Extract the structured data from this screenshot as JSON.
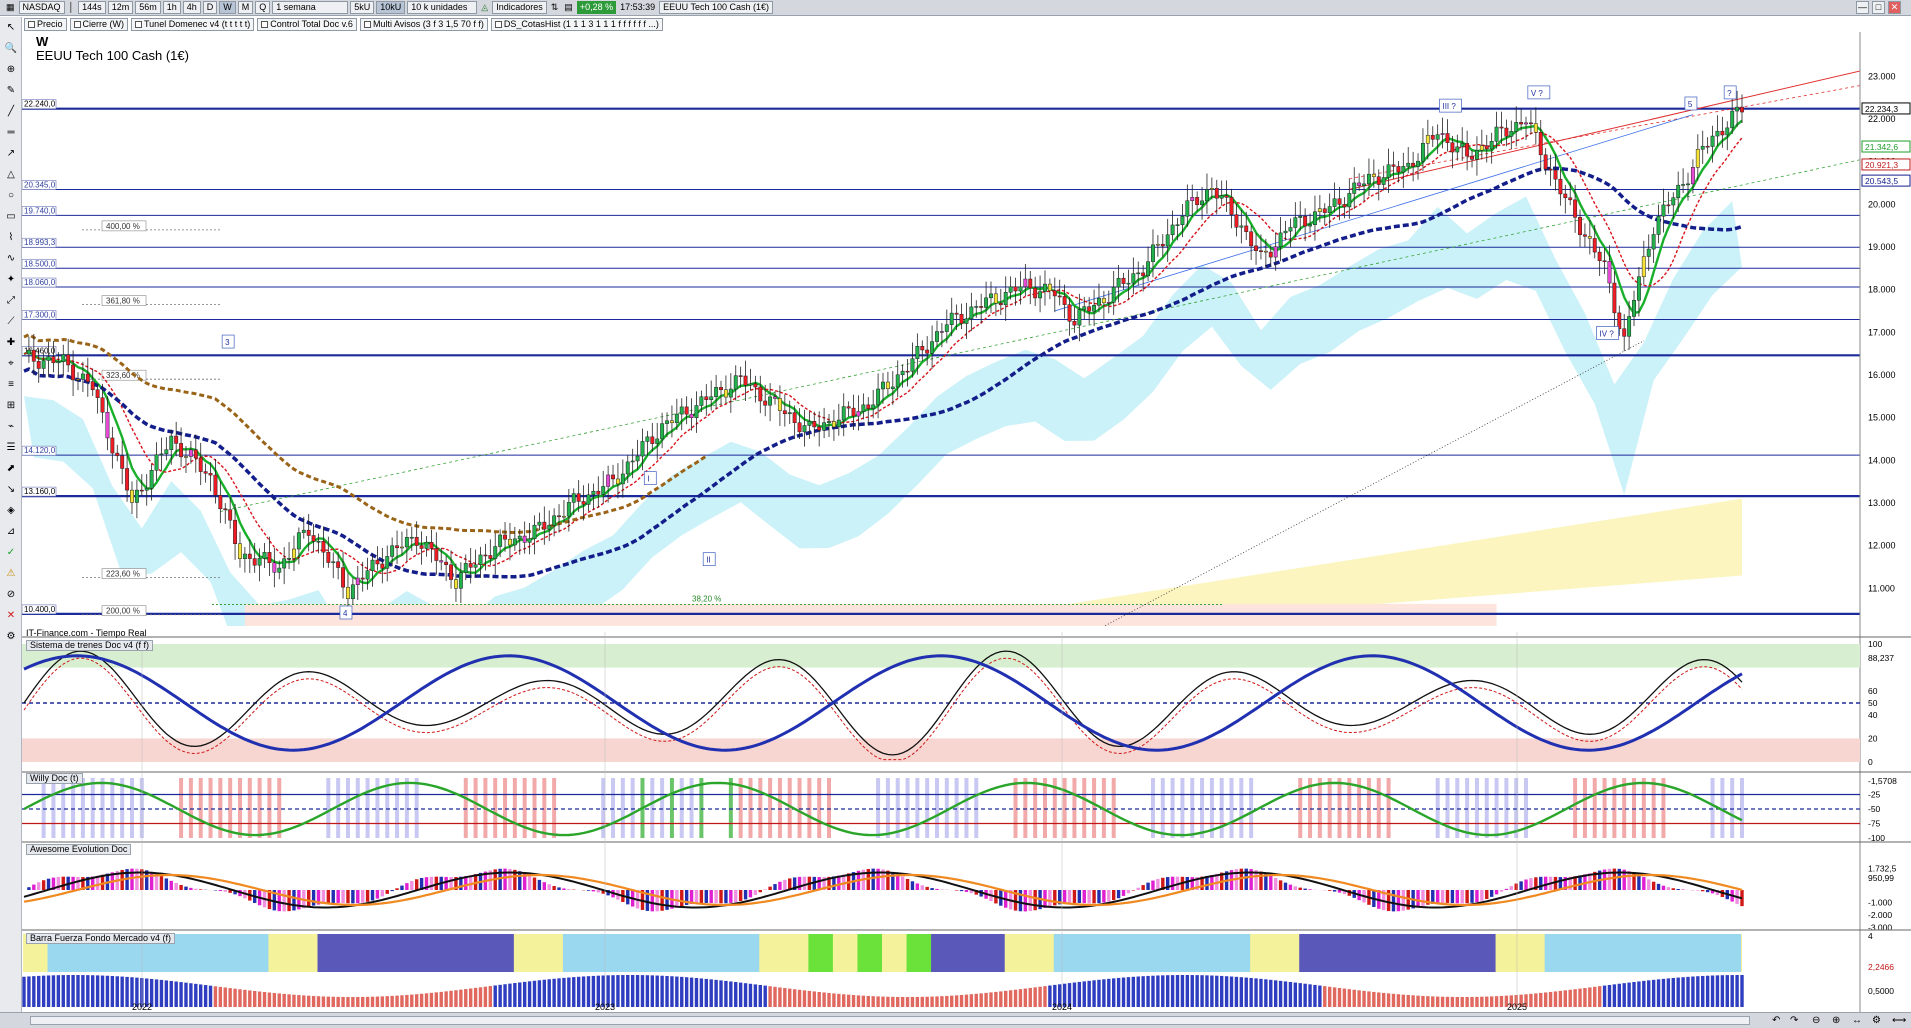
{
  "toolbar": {
    "symbol": "NASDAQ",
    "periods": [
      "144s",
      "12m",
      "56m",
      "1h",
      "4h",
      "D",
      "W",
      "M",
      "Q"
    ],
    "active_period": "W",
    "timeframe": "1 semana",
    "units_a": "5kU",
    "units_b": "10kU",
    "units_sel": "10 k unidades",
    "indicators": "Indicadores",
    "change": "+0,28 %",
    "time": "17:53:39",
    "instrument": "EEUU Tech 100 Cash (1€)"
  },
  "studies": [
    "Precio",
    "Cierre (W)",
    "Tunel Domenec v4 (t t t t t)",
    "Control Total Doc v.6",
    "Multi Avisos (3 f 3 1,5 70 f f)",
    "DS_CotasHist (1 1 1 3 1 1 1 f f f f f f ...)"
  ],
  "chart": {
    "timeframe_letter": "W",
    "instrument_title": "EEUU Tech 100 Cash (1€)",
    "provider": "IT-Finance.com - Tiempo Real",
    "level_labels": [
      {
        "label": "22.240,0",
        "value": 22240,
        "bold": true
      },
      {
        "label": "20.345,0",
        "value": 20345,
        "bold": false
      },
      {
        "label": "19.740,0",
        "value": 19740,
        "bold": false
      },
      {
        "label": "18.993,3",
        "value": 18993,
        "bold": false
      },
      {
        "label": "18.500,0",
        "value": 18500,
        "bold": false
      },
      {
        "label": "18.060,0",
        "value": 18060,
        "bold": false
      },
      {
        "label": "17.300,0",
        "value": 17300,
        "bold": false
      },
      {
        "label": "16.460,0",
        "value": 16460,
        "bold": true
      },
      {
        "label": "14.120,0",
        "value": 14120,
        "bold": false
      },
      {
        "label": "13.160,0",
        "value": 13160,
        "bold": true
      },
      {
        "label": "10.400,0",
        "value": 10400,
        "bold": true
      }
    ],
    "fib_labels": [
      {
        "label": "400,00 %",
        "value": 19400
      },
      {
        "label": "361,80 %",
        "value": 17650
      },
      {
        "label": "323,60 %",
        "value": 15900
      },
      {
        "label": "223,60 %",
        "value": 11250
      },
      {
        "label": "200,00 %",
        "value": 10380
      }
    ],
    "retrace_label": "38,20 %",
    "y_axis": [
      "23.000",
      "22.000",
      "21.000",
      "20.000",
      "19.000",
      "18.000",
      "17.000",
      "16.000",
      "15.000",
      "14.000",
      "13.000",
      "12.000",
      "11.000"
    ],
    "price_tags": [
      {
        "label": "22.234,3",
        "value": 22234,
        "color": "#000000"
      },
      {
        "label": "21.342,6",
        "value": 21342,
        "color": "#1e9e2a"
      },
      {
        "label": "20.921,3",
        "value": 20921,
        "color": "#c21a1a"
      },
      {
        "label": "20.543,5",
        "value": 20543,
        "color": "#141e8a"
      }
    ],
    "wave_labels": [
      "3",
      "4",
      "I",
      "II",
      "III ?",
      "V ?",
      "5",
      "?",
      "IV ?"
    ],
    "x_axis": [
      "2022",
      "2023",
      "2024",
      "2025"
    ]
  },
  "panels": {
    "trenes": {
      "title": "Sistema de trenes Doc v4 (f f)",
      "axis": [
        "100",
        "88,237",
        "60",
        "50",
        "40",
        "20",
        "0"
      ]
    },
    "willy": {
      "title": "Willy Doc (t)",
      "axis": [
        "-1,5708",
        "-25",
        "-50",
        "-75",
        "-100"
      ]
    },
    "awesome": {
      "title": "Awesome Evolution Doc",
      "axis": [
        "1.732,5",
        "950,99",
        "-1.000",
        "-2.000",
        "-3.000"
      ]
    },
    "barra": {
      "title": "Barra Fuerza Fondo Mercado v4 (f)",
      "axis": [
        "4",
        "2,2466",
        "0,5000"
      ]
    }
  },
  "colors": {
    "up_candle": "#22b14c",
    "down_candle": "#ee1c24",
    "level_line": "#1b2a9a",
    "sma_red": "#d8141c",
    "sma_green": "#18b02a",
    "sma_navy": "#141e8a",
    "sma_brown": "#9a6418",
    "cloud_cyan": "#9fe7f3",
    "cloud_yellow": "#fbf3b0"
  }
}
